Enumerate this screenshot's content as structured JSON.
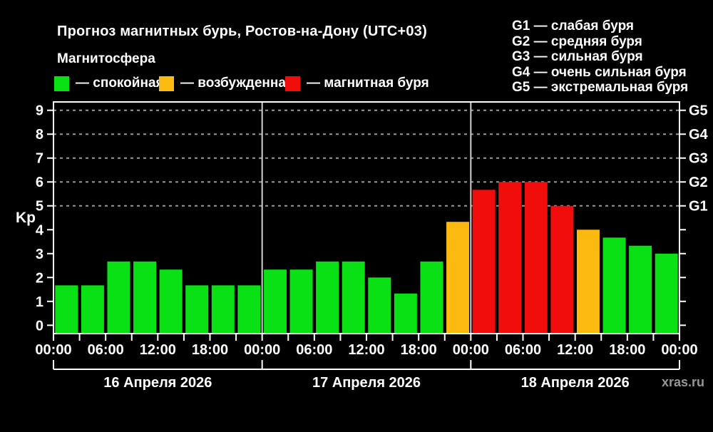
{
  "header": {
    "title": "Прогноз магнитных бурь, Ростов-на-Дону (UTC+03)",
    "subtitle": "Магнитосфера"
  },
  "status_legend": [
    {
      "name": "quiet",
      "label": "— спокойная",
      "color": "#0AE114"
    },
    {
      "name": "active",
      "label": "— возбужденная",
      "color": "#FCB90F"
    },
    {
      "name": "storm",
      "label": "— магнитная буря",
      "color": "#F20D0D"
    }
  ],
  "g_scale_legend": [
    "G1 — слабая буря",
    "G2 — средняя буря",
    "G3 — сильная буря",
    "G4 — очень сильная буря",
    "G5 — экстремальная буря"
  ],
  "watermark": "xras.ru",
  "chart_data": {
    "type": "bar",
    "title": "Прогноз магнитных бурь, Ростов-на-Дону (UTC+03)",
    "subtitle": "Магнитосфера",
    "ylabel": "Kp",
    "xlabel": "",
    "ylim": [
      -0.35,
      9.35
    ],
    "y_ticks": [
      0,
      1,
      2,
      3,
      4,
      5,
      6,
      7,
      8,
      9
    ],
    "gridlines_at": [
      5,
      6,
      7,
      8,
      9
    ],
    "grid": "dashed-horizontal",
    "legend_position": "top",
    "right_axis_labels": [
      {
        "label": "G5",
        "value": 9
      },
      {
        "label": "G4",
        "value": 8
      },
      {
        "label": "G3",
        "value": 7
      },
      {
        "label": "G2",
        "value": 6
      },
      {
        "label": "G1",
        "value": 5
      }
    ],
    "bar_interval_hours": 3,
    "time_tick_labels": [
      "00:00",
      "06:00",
      "12:00",
      "18:00",
      "00:00",
      "06:00",
      "12:00",
      "18:00",
      "00:00",
      "06:00",
      "12:00",
      "18:00",
      "00:00"
    ],
    "days": [
      {
        "date": "16 Апреля 2026",
        "values": [
          1.67,
          1.67,
          2.67,
          2.67,
          2.33,
          1.67,
          1.67,
          1.67
        ],
        "levels": [
          "quiet",
          "quiet",
          "quiet",
          "quiet",
          "quiet",
          "quiet",
          "quiet",
          "quiet"
        ]
      },
      {
        "date": "17 Апреля 2026",
        "values": [
          2.33,
          2.33,
          2.67,
          2.67,
          2.0,
          1.33,
          2.67,
          4.33
        ],
        "levels": [
          "quiet",
          "quiet",
          "quiet",
          "quiet",
          "quiet",
          "quiet",
          "quiet",
          "active"
        ]
      },
      {
        "date": "18 Апреля 2026",
        "values": [
          5.67,
          6.0,
          6.0,
          5.0,
          4.0,
          3.67,
          3.33,
          3.0
        ],
        "levels": [
          "storm",
          "storm",
          "storm",
          "storm",
          "active",
          "quiet",
          "quiet",
          "quiet"
        ]
      }
    ],
    "palette": {
      "quiet": "#0AE114",
      "active": "#FCB90F",
      "storm": "#F20D0D",
      "axis": "#FFFFFF",
      "text": "#FFFFFF",
      "grid": "#9A9A9A",
      "day_separator": "#CFCFCF",
      "watermark": "#969696"
    }
  }
}
